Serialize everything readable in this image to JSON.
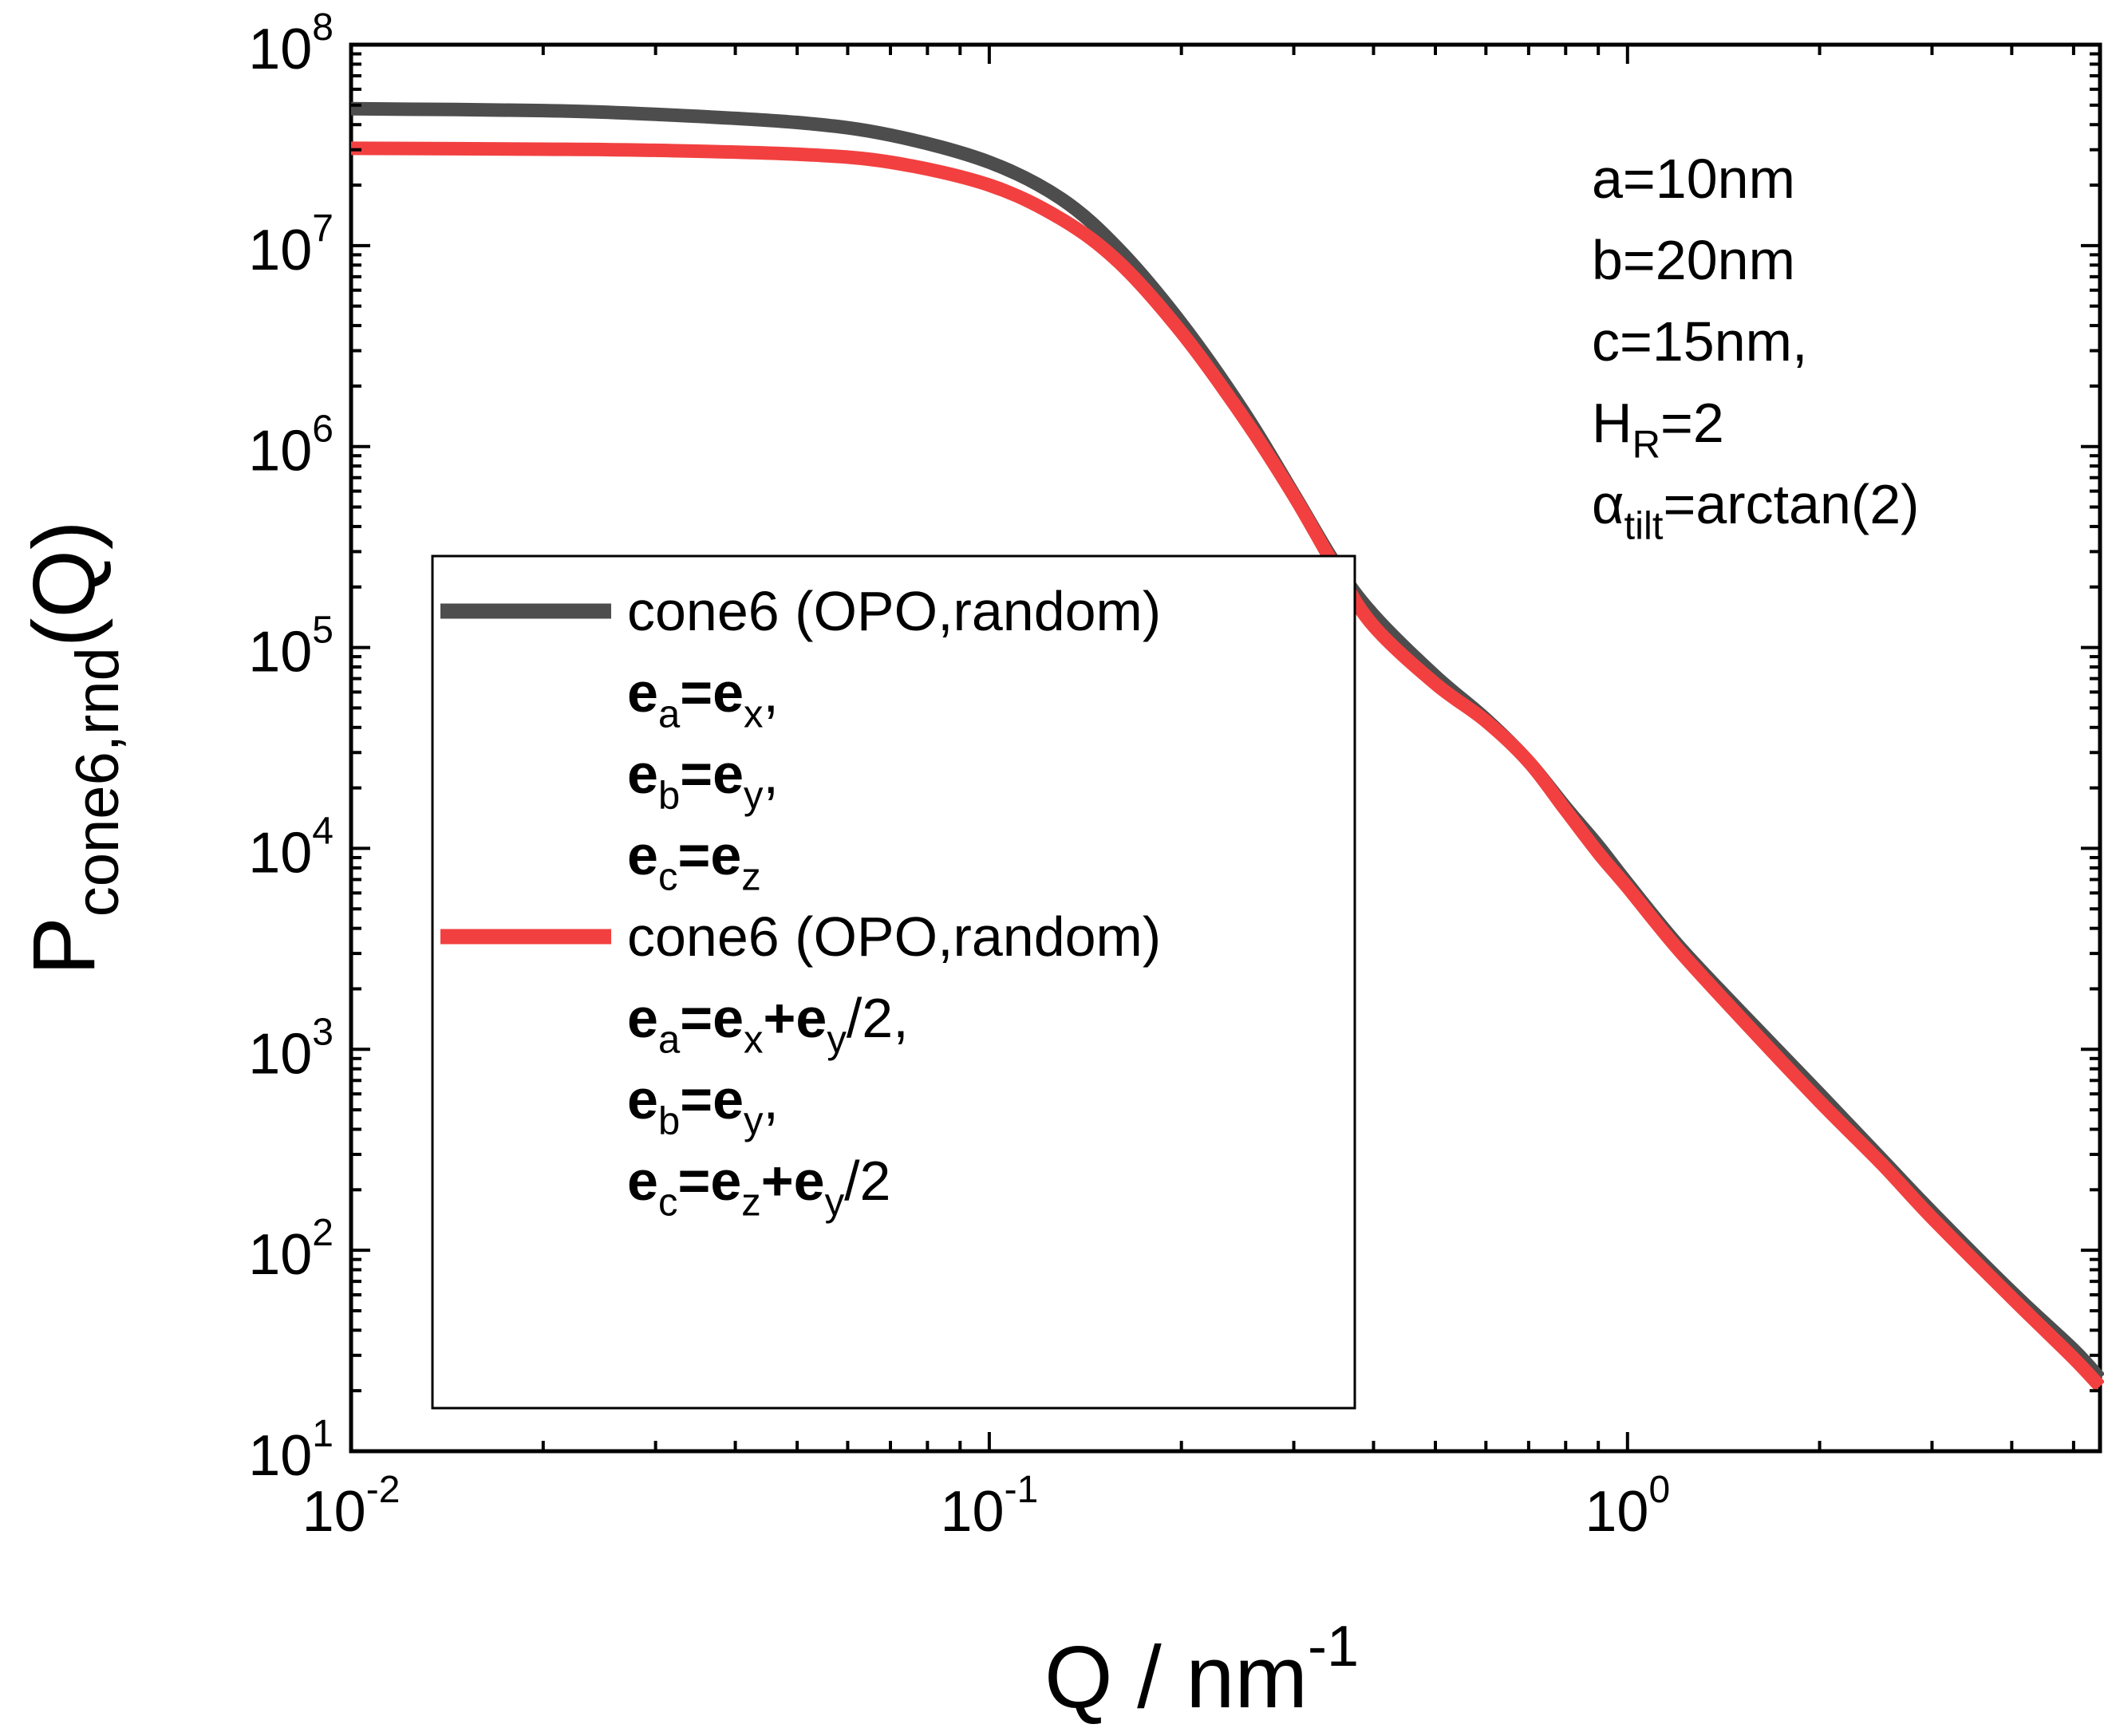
{
  "chart_data": {
    "type": "line",
    "x_scale": "log",
    "y_scale": "log",
    "xlim": [
      0.01,
      5.5
    ],
    "ylim": [
      10,
      100000000
    ],
    "xlabel": {
      "base": "Q / nm",
      "sup": "-1"
    },
    "ylabel": {
      "base": "P",
      "sub": "cone6,rnd",
      "tail": "(Q)"
    },
    "x_ticks": [
      {
        "value": 0.01,
        "base": "10",
        "exp": "-2"
      },
      {
        "value": 0.1,
        "base": "10",
        "exp": "-1"
      },
      {
        "value": 1,
        "base": "10",
        "exp": "0"
      }
    ],
    "y_ticks": [
      {
        "value": 10,
        "base": "10",
        "exp": "1"
      },
      {
        "value": 100,
        "base": "10",
        "exp": "2"
      },
      {
        "value": 1000,
        "base": "10",
        "exp": "3"
      },
      {
        "value": 10000,
        "base": "10",
        "exp": "4"
      },
      {
        "value": 100000,
        "base": "10",
        "exp": "5"
      },
      {
        "value": 1000000,
        "base": "10",
        "exp": "6"
      },
      {
        "value": 10000000,
        "base": "10",
        "exp": "7"
      },
      {
        "value": 100000000,
        "base": "10",
        "exp": "8"
      }
    ],
    "grid": false,
    "legend_position": "center-left",
    "annotations": [
      [
        {
          "t": "a=10nm"
        }
      ],
      [
        {
          "t": "b=20nm"
        }
      ],
      [
        {
          "t": "c=15nm,"
        }
      ],
      [
        {
          "t": "H"
        },
        {
          "t": "R",
          "sub": true
        },
        {
          "t": "=2"
        }
      ],
      [
        {
          "t": "α"
        },
        {
          "t": "tilt",
          "sub": true
        },
        {
          "t": "=arctan(2)"
        }
      ]
    ],
    "series": [
      {
        "color": "#4d4d4d",
        "legend": [
          [
            {
              "t": "cone6 (OPO,random)"
            }
          ],
          [
            {
              "t": "e",
              "b": true
            },
            {
              "t": "a",
              "sub": true
            },
            {
              "t": "=",
              "b": true
            },
            {
              "t": "e",
              "b": true
            },
            {
              "t": "x",
              "sub": true
            },
            {
              "t": ","
            }
          ],
          [
            {
              "t": "e",
              "b": true
            },
            {
              "t": "b",
              "sub": true
            },
            {
              "t": "=",
              "b": true
            },
            {
              "t": "e",
              "b": true
            },
            {
              "t": "y",
              "sub": true
            },
            {
              "t": ","
            }
          ],
          [
            {
              "t": "e",
              "b": true
            },
            {
              "t": "c",
              "sub": true
            },
            {
              "t": "=",
              "b": true
            },
            {
              "t": "e",
              "b": true
            },
            {
              "t": "z",
              "sub": true
            }
          ]
        ],
        "x": [
          0.01,
          0.02,
          0.03,
          0.05,
          0.07,
          0.1,
          0.13,
          0.16,
          0.2,
          0.25,
          0.3,
          0.35,
          0.4,
          0.5,
          0.6,
          0.7,
          0.8,
          0.9,
          1.0,
          1.2,
          1.5,
          2.0,
          2.5,
          3.0,
          4.0,
          5.0,
          5.5
        ],
        "y": [
          48000000,
          47000000,
          45000000,
          41000000,
          35500000,
          26000000,
          17000000,
          9500000,
          4100000,
          1500000,
          580000,
          255000,
          145000,
          72000,
          44000,
          27000,
          16000,
          10300,
          6700,
          3300,
          1550,
          600,
          285,
          155,
          62,
          32,
          23
        ]
      },
      {
        "color": "#f24040",
        "legend": [
          [
            {
              "t": "cone6 (OPO,random)"
            }
          ],
          [
            {
              "t": "e",
              "b": true
            },
            {
              "t": "a",
              "sub": true
            },
            {
              "t": "=",
              "b": true
            },
            {
              "t": "e",
              "b": true
            },
            {
              "t": "x",
              "sub": true
            },
            {
              "t": "+",
              "b": true
            },
            {
              "t": "e",
              "b": true
            },
            {
              "t": "y",
              "sub": true
            },
            {
              "t": "/2,"
            }
          ],
          [
            {
              "t": "e",
              "b": true
            },
            {
              "t": "b",
              "sub": true
            },
            {
              "t": "=",
              "b": true
            },
            {
              "t": "e",
              "b": true
            },
            {
              "t": "y",
              "sub": true
            },
            {
              "t": ","
            }
          ],
          [
            {
              "t": "e",
              "b": true
            },
            {
              "t": "c",
              "sub": true
            },
            {
              "t": "=",
              "b": true
            },
            {
              "t": "e",
              "b": true
            },
            {
              "t": "z",
              "sub": true
            },
            {
              "t": "+",
              "b": true
            },
            {
              "t": "e",
              "b": true
            },
            {
              "t": "y",
              "sub": true
            },
            {
              "t": "/2"
            }
          ]
        ],
        "x": [
          0.01,
          0.02,
          0.03,
          0.05,
          0.07,
          0.1,
          0.13,
          0.16,
          0.2,
          0.25,
          0.3,
          0.35,
          0.4,
          0.5,
          0.6,
          0.7,
          0.8,
          0.9,
          1.0,
          1.2,
          1.5,
          2.0,
          2.5,
          3.0,
          4.0,
          5.0,
          5.5
        ],
        "y": [
          30500000,
          30200000,
          29800000,
          28500000,
          26000000,
          20000000,
          13500000,
          8200000,
          3700000,
          1400000,
          570000,
          245000,
          128000,
          66000,
          43000,
          27000,
          15500,
          9500,
          6400,
          3150,
          1450,
          550,
          270,
          145,
          58,
          29,
          21
        ]
      }
    ]
  }
}
